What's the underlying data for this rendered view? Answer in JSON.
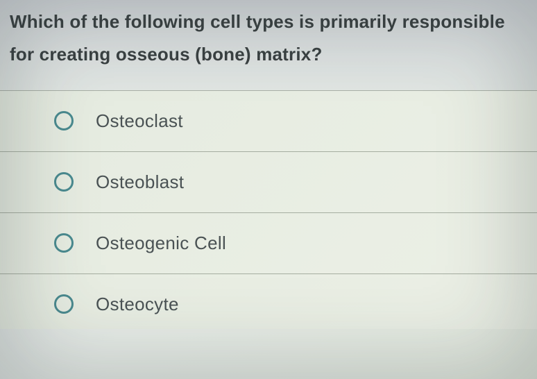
{
  "question": {
    "text": "Which of the following cell types is primarily responsible for creating osseous (bone) matrix?",
    "text_color": "#3a4142",
    "fontsize": 26,
    "fontweight": 700
  },
  "options": [
    {
      "label": "Osteoclast",
      "selected": false
    },
    {
      "label": "Osteoblast",
      "selected": false
    },
    {
      "label": "Osteogenic Cell",
      "selected": false
    },
    {
      "label": "Osteocyte",
      "selected": false
    }
  ],
  "styling": {
    "radio_border_color": "#4a8a8f",
    "radio_border_width": 3,
    "option_text_color": "#4a5254",
    "option_fontsize": 26,
    "divider_color": "#a5ada0",
    "header_bg_start": "#d5d9dc",
    "header_bg_end": "#e0e5e2",
    "options_bg_start": "#e5ebe0",
    "options_bg_end": "#ecf0e6"
  }
}
